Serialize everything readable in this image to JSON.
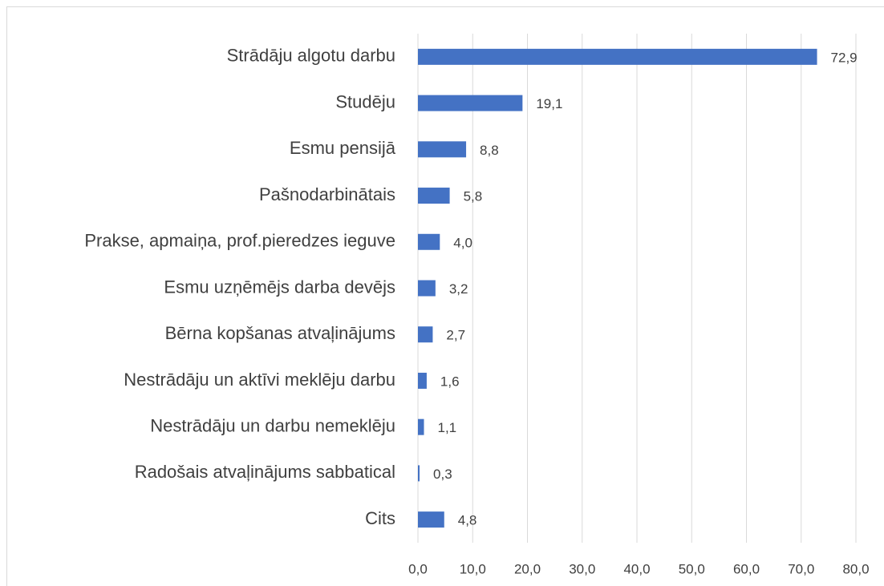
{
  "chart_data": {
    "type": "bar",
    "orientation": "horizontal",
    "categories": [
      "Strādāju algotu darbu",
      "Studēju",
      "Esmu pensijā",
      "Pašnodarbinātais",
      "Prakse, apmaiņa, prof.pieredzes ieguve",
      "Esmu uzņēmējs darba devējs",
      "Bērna kopšanas atvaļinājums",
      "Nestrādāju un aktīvi meklēju darbu",
      "Nestrādāju un darbu nemeklēju",
      "Radošais atvaļinājums sabbatical",
      "Cits"
    ],
    "values": [
      72.9,
      19.1,
      8.8,
      5.8,
      4.0,
      3.2,
      2.7,
      1.6,
      1.1,
      0.3,
      4.8
    ],
    "value_labels": [
      "72,9",
      "19,1",
      "8,8",
      "5,8",
      "4,0",
      "3,2",
      "2,7",
      "1,6",
      "1,1",
      "0,3",
      "4,8"
    ],
    "color": "#4472c4",
    "xlim": [
      0,
      80
    ],
    "xticks": [
      {
        "value": 0,
        "label": "0,0"
      },
      {
        "value": 10,
        "label": "10,0"
      },
      {
        "value": 20,
        "label": "20,0"
      },
      {
        "value": 30,
        "label": "30,0"
      },
      {
        "value": 40,
        "label": "40,0"
      },
      {
        "value": 50,
        "label": "50,0"
      },
      {
        "value": 60,
        "label": "60,0"
      },
      {
        "value": 70,
        "label": "70,0"
      },
      {
        "value": 80,
        "label": "80,0"
      }
    ],
    "grid": true
  }
}
